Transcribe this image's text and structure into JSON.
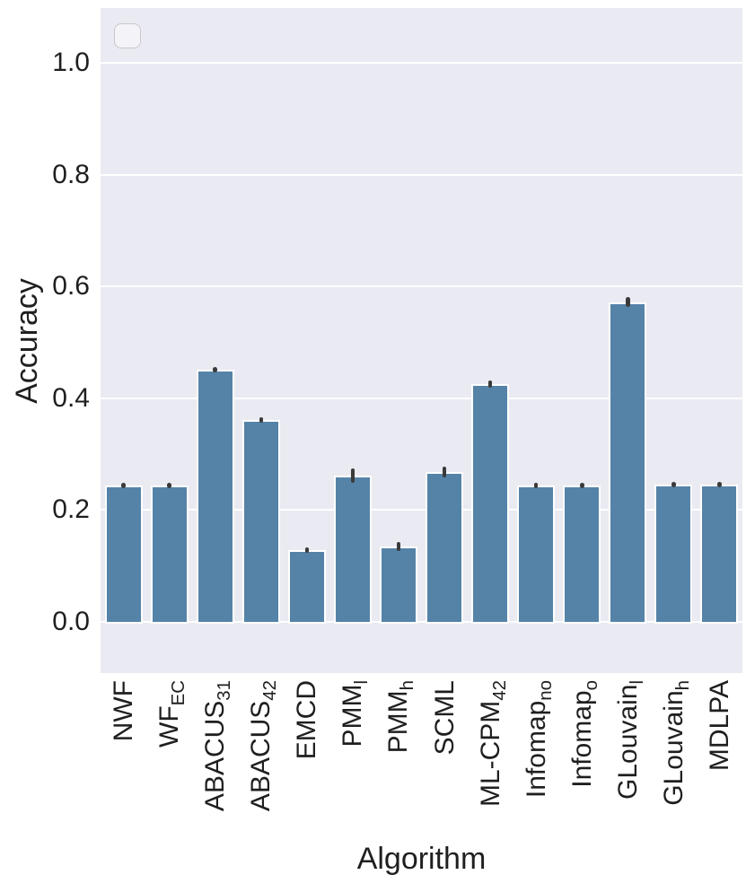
{
  "figure": {
    "background_color": "#ffffff",
    "plot_background_color": "#eaeaf2",
    "grid_color": "#ffffff",
    "bar_color": "#5583a8",
    "bar_edge_color": "#ffffff",
    "error_bar_color": "#3a3a3a",
    "text_color": "#1f1f1f",
    "legend": {
      "visible": true,
      "entries": [],
      "border_color": "#c8c8cc",
      "position": "upper-left"
    }
  },
  "chart_data": {
    "type": "bar",
    "title": "",
    "xlabel": "Algorithm",
    "ylabel": "Accuracy",
    "ylim": [
      -0.095,
      1.098
    ],
    "yticks": [
      "0.0",
      "0.2",
      "0.4",
      "0.6",
      "0.8",
      "1.0"
    ],
    "grid": true,
    "legend_position": "upper-left",
    "categories": [
      {
        "name": "NWF",
        "sub": ""
      },
      {
        "name": "WF",
        "sub": "EC"
      },
      {
        "name": "ABACUS",
        "sub": "31"
      },
      {
        "name": "ABACUS",
        "sub": "42"
      },
      {
        "name": "EMCD",
        "sub": ""
      },
      {
        "name": "PMM",
        "sub": "l"
      },
      {
        "name": "PMM",
        "sub": "h"
      },
      {
        "name": "SCML",
        "sub": ""
      },
      {
        "name": "ML-CPM",
        "sub": "42"
      },
      {
        "name": "Infomap",
        "sub": "no"
      },
      {
        "name": "Infomap",
        "sub": "o"
      },
      {
        "name": "GLouvain",
        "sub": "l"
      },
      {
        "name": "GLouvain",
        "sub": "h"
      },
      {
        "name": "MDLPA",
        "sub": ""
      }
    ],
    "series": [
      {
        "name": "Accuracy",
        "values": [
          0.244,
          0.244,
          0.451,
          0.361,
          0.129,
          0.261,
          0.135,
          0.268,
          0.425,
          0.244,
          0.244,
          0.572,
          0.245,
          0.245
        ],
        "errors": [
          0.004,
          0.004,
          0.005,
          0.005,
          0.004,
          0.013,
          0.008,
          0.009,
          0.006,
          0.004,
          0.004,
          0.009,
          0.004,
          0.004
        ]
      }
    ]
  }
}
